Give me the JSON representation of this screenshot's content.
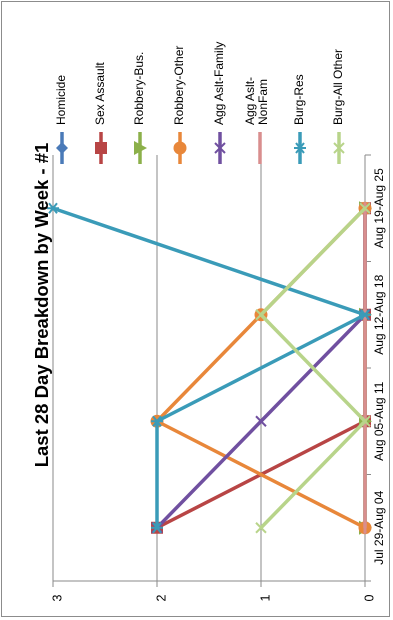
{
  "chart_data": {
    "type": "line",
    "title": "Last 28 Day Breakdown by Week - #1",
    "categories": [
      "Jul 29-Aug 04",
      "Aug 05-Aug 11",
      "Aug 12-Aug 18",
      "Aug 19-Aug 25"
    ],
    "ylim": [
      0,
      3
    ],
    "yticks": [
      0,
      1,
      2,
      3
    ],
    "grid": true,
    "legend_position": "top",
    "orientation": "rotated 90 degrees clockwise",
    "series": [
      {
        "name": "Homicide",
        "values": [
          0,
          0,
          0,
          0
        ],
        "color": "#4a7ab8",
        "marker": "diamond"
      },
      {
        "name": "Sex Assault",
        "values": [
          2,
          0,
          0,
          0
        ],
        "color": "#b84545",
        "marker": "square"
      },
      {
        "name": "Robbery-Bus.",
        "values": [
          0,
          0,
          0,
          0
        ],
        "color": "#8cb04a",
        "marker": "triangle"
      },
      {
        "name": "Robbery-Other",
        "values": [
          0,
          2,
          1,
          0
        ],
        "color": "#e8873a",
        "marker": "circle"
      },
      {
        "name": "Agg Aslt-Family",
        "values": [
          2,
          1,
          0,
          0
        ],
        "color": "#7050a0",
        "marker": "x"
      },
      {
        "name": "Agg Aslt-NonFam",
        "values": [
          0,
          0,
          0,
          0
        ],
        "color": "#d98e8e",
        "marker": "dash"
      },
      {
        "name": "Burg-Res",
        "values": [
          2,
          2,
          0,
          3
        ],
        "color": "#3a9bb8",
        "marker": "star"
      },
      {
        "name": "Burg-All Other",
        "values": [
          1,
          0,
          1,
          0
        ],
        "color": "#b8d48a",
        "marker": "x"
      }
    ]
  }
}
